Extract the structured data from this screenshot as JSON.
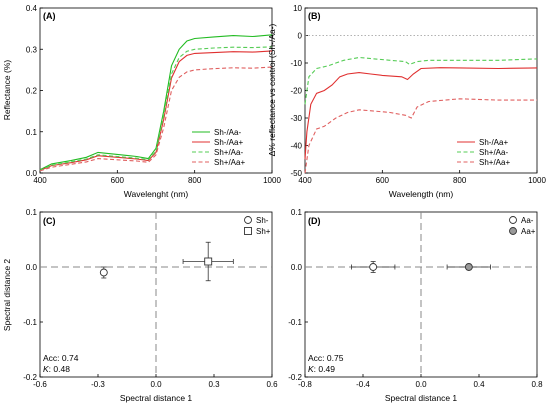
{
  "chart_data": [
    {
      "panel": "(A)",
      "type": "line",
      "xlabel": "Wavelenght (nm)",
      "ylabel": "Reflectance (%)",
      "xlim": [
        400,
        1000
      ],
      "ylim": [
        0,
        0.4
      ],
      "xticks": [
        "400",
        "600",
        "800",
        "1000"
      ],
      "yticks": [
        "0.0",
        "0.1",
        "0.2",
        "0.3",
        "0.4"
      ],
      "legend_position": "bottom-right",
      "series": [
        {
          "name": "Sh-/Aa-",
          "color": "#22bb22",
          "dash": "solid",
          "points": [
            [
              400,
              0.008
            ],
            [
              430,
              0.022
            ],
            [
              480,
              0.03
            ],
            [
              520,
              0.038
            ],
            [
              550,
              0.05
            ],
            [
              600,
              0.045
            ],
            [
              650,
              0.04
            ],
            [
              680,
              0.035
            ],
            [
              700,
              0.06
            ],
            [
              720,
              0.15
            ],
            [
              740,
              0.26
            ],
            [
              760,
              0.3
            ],
            [
              780,
              0.32
            ],
            [
              800,
              0.326
            ],
            [
              850,
              0.33
            ],
            [
              900,
              0.333
            ],
            [
              950,
              0.331
            ],
            [
              1000,
              0.335
            ]
          ]
        },
        {
          "name": "Sh-/Aa+",
          "color": "#e03030",
          "dash": "solid",
          "points": [
            [
              400,
              0.006
            ],
            [
              430,
              0.018
            ],
            [
              480,
              0.025
            ],
            [
              520,
              0.032
            ],
            [
              550,
              0.042
            ],
            [
              600,
              0.038
            ],
            [
              650,
              0.034
            ],
            [
              680,
              0.03
            ],
            [
              700,
              0.05
            ],
            [
              720,
              0.13
            ],
            [
              740,
              0.23
            ],
            [
              760,
              0.27
            ],
            [
              780,
              0.285
            ],
            [
              800,
              0.29
            ],
            [
              850,
              0.292
            ],
            [
              900,
              0.294
            ],
            [
              950,
              0.293
            ],
            [
              1000,
              0.296
            ]
          ]
        },
        {
          "name": "Sh+/Aa-",
          "color": "#55cc55",
          "dash": "dashed",
          "points": [
            [
              400,
              0.006
            ],
            [
              430,
              0.019
            ],
            [
              480,
              0.027
            ],
            [
              520,
              0.034
            ],
            [
              550,
              0.044
            ],
            [
              600,
              0.04
            ],
            [
              650,
              0.036
            ],
            [
              680,
              0.032
            ],
            [
              700,
              0.053
            ],
            [
              720,
              0.14
            ],
            [
              740,
              0.24
            ],
            [
              760,
              0.28
            ],
            [
              780,
              0.295
            ],
            [
              800,
              0.3
            ],
            [
              850,
              0.303
            ],
            [
              900,
              0.305
            ],
            [
              950,
              0.304
            ],
            [
              1000,
              0.306
            ]
          ]
        },
        {
          "name": "Sh+/Aa+",
          "color": "#e06060",
          "dash": "dashed",
          "points": [
            [
              400,
              0.005
            ],
            [
              430,
              0.014
            ],
            [
              480,
              0.021
            ],
            [
              520,
              0.027
            ],
            [
              550,
              0.035
            ],
            [
              600,
              0.032
            ],
            [
              650,
              0.029
            ],
            [
              680,
              0.026
            ],
            [
              700,
              0.044
            ],
            [
              720,
              0.11
            ],
            [
              740,
              0.2
            ],
            [
              760,
              0.232
            ],
            [
              780,
              0.245
            ],
            [
              800,
              0.25
            ],
            [
              850,
              0.253
            ],
            [
              900,
              0.255
            ],
            [
              950,
              0.254
            ],
            [
              1000,
              0.257
            ]
          ]
        }
      ]
    },
    {
      "panel": "(B)",
      "type": "line",
      "xlabel": "Wavelength (nm)",
      "ylabel": "Δ% reflectance vs control (Sh-/Aa-)",
      "xlim": [
        400,
        1000
      ],
      "ylim": [
        -50,
        10
      ],
      "xticks": [
        "400",
        "600",
        "800",
        "1000"
      ],
      "yticks": [
        "-50",
        "-40",
        "-30",
        "-20",
        "-10",
        "0",
        "10"
      ],
      "reference_line": 0,
      "legend_position": "bottom-right",
      "series": [
        {
          "name": "Sh-/Aa+",
          "color": "#e03030",
          "dash": "solid",
          "points": [
            [
              400,
              -45
            ],
            [
              405,
              -35
            ],
            [
              415,
              -25
            ],
            [
              430,
              -21
            ],
            [
              450,
              -20
            ],
            [
              470,
              -18
            ],
            [
              490,
              -15
            ],
            [
              510,
              -14
            ],
            [
              540,
              -13.5
            ],
            [
              570,
              -14
            ],
            [
              600,
              -14.5
            ],
            [
              650,
              -15
            ],
            [
              665,
              -16
            ],
            [
              680,
              -14
            ],
            [
              700,
              -12
            ],
            [
              750,
              -11.7
            ],
            [
              800,
              -11.8
            ],
            [
              900,
              -12
            ],
            [
              1000,
              -11.8
            ]
          ]
        },
        {
          "name": "Sh+/Aa-",
          "color": "#55cc55",
          "dash": "dashed",
          "points": [
            [
              400,
              -25
            ],
            [
              410,
              -15
            ],
            [
              430,
              -12
            ],
            [
              460,
              -11
            ],
            [
              480,
              -10
            ],
            [
              500,
              -9
            ],
            [
              540,
              -8
            ],
            [
              580,
              -8.5
            ],
            [
              620,
              -9
            ],
            [
              660,
              -9.5
            ],
            [
              670,
              -10.5
            ],
            [
              690,
              -9.5
            ],
            [
              720,
              -9
            ],
            [
              800,
              -9
            ],
            [
              900,
              -9
            ],
            [
              1000,
              -8.5
            ]
          ]
        },
        {
          "name": "Sh+/Aa+",
          "color": "#e06060",
          "dash": "dashed",
          "points": [
            [
              400,
              -50
            ],
            [
              410,
              -40
            ],
            [
              430,
              -34
            ],
            [
              450,
              -33
            ],
            [
              480,
              -30
            ],
            [
              510,
              -28
            ],
            [
              540,
              -27
            ],
            [
              580,
              -27.5
            ],
            [
              620,
              -28
            ],
            [
              660,
              -29
            ],
            [
              675,
              -30
            ],
            [
              690,
              -26
            ],
            [
              720,
              -24
            ],
            [
              800,
              -23
            ],
            [
              900,
              -23.5
            ],
            [
              1000,
              -23.5
            ]
          ]
        }
      ]
    },
    {
      "panel": "(C)",
      "type": "scatter",
      "xlabel": "Spectral distance 1",
      "ylabel": "Spectral distance 2",
      "xlim": [
        -0.6,
        0.6
      ],
      "ylim": [
        -0.2,
        0.1
      ],
      "xticks": [
        "-0.6",
        "-0.3",
        "0.0",
        "0.3",
        "0.6"
      ],
      "yticks": [
        "-0.2",
        "-0.1",
        "0.0",
        "0.1"
      ],
      "legend_position": "top-right",
      "points": [
        {
          "name": "Sh-",
          "marker": "circle",
          "x": -0.27,
          "y": -0.01,
          "xerr": 0.0,
          "yerr": 0.01
        },
        {
          "name": "Sh+",
          "marker": "square",
          "x": 0.27,
          "y": 0.01,
          "xerr": 0.13,
          "yerr": 0.035
        }
      ],
      "annotation": {
        "acc_label": "Acc:",
        "acc_value": "0.74",
        "k_label": "K",
        "k_value": ": 0.48"
      }
    },
    {
      "panel": "(D)",
      "type": "scatter",
      "xlabel": "Spectral distance 1",
      "ylabel": "",
      "xlim": [
        -0.8,
        0.8
      ],
      "ylim": [
        -0.2,
        0.1
      ],
      "xticks": [
        "-0.8",
        "-0.4",
        "0.0",
        "0.4",
        "0.8"
      ],
      "yticks": [
        "-0.2",
        "-0.1",
        "0.0",
        "0.1"
      ],
      "legend_position": "top-right",
      "points": [
        {
          "name": "Aa-",
          "marker": "circle-open",
          "x": -0.33,
          "y": 0.0,
          "xerr": 0.15,
          "yerr": 0.01
        },
        {
          "name": "Aa+",
          "marker": "circle-filled",
          "x": 0.33,
          "y": 0.0,
          "xerr": 0.15,
          "yerr": 0.005
        }
      ],
      "annotation": {
        "acc_label": "Acc:",
        "acc_value": "0.75",
        "k_label": "K",
        "k_value": ": 0.49"
      }
    }
  ]
}
